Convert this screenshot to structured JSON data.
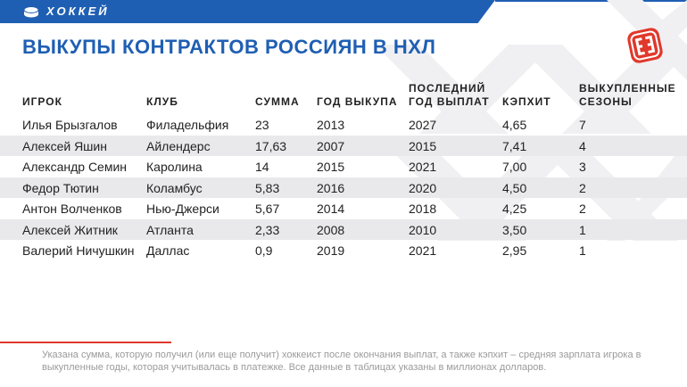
{
  "header": {
    "section_label": "ХОККЕЙ",
    "accent_color": "#1f5fb3",
    "logo_color": "#e0382b"
  },
  "title": "ВЫКУПЫ КОНТРАКТОВ РОССИЯН В НХЛ",
  "table": {
    "columns": [
      [
        "ИГРОК"
      ],
      [
        "КЛУБ"
      ],
      [
        "СУММА"
      ],
      [
        "ГОД ВЫКУПА"
      ],
      [
        "ПОСЛЕДНИЙ",
        "ГОД ВЫПЛАТ"
      ],
      [
        "КЭПХИТ"
      ],
      [
        "ВЫКУПЛЕННЫЕ",
        "СЕЗОНЫ"
      ]
    ],
    "rows": [
      [
        "Илья Брызгалов",
        "Филадельфия",
        "23",
        "2013",
        "2027",
        "4,65",
        "7"
      ],
      [
        "Алексей Яшин",
        "Айлендерс",
        "17,63",
        "2007",
        "2015",
        "7,41",
        "4"
      ],
      [
        "Александр Семин",
        "Каролина",
        "14",
        "2015",
        "2021",
        "7,00",
        "3"
      ],
      [
        "Федор Тютин",
        "Коламбус",
        "5,83",
        "2016",
        "2020",
        "4,50",
        "2"
      ],
      [
        "Антон Волченков",
        "Нью-Джерси",
        "5,67",
        "2014",
        "2018",
        "4,25",
        "2"
      ],
      [
        "Алексей Житник",
        "Атланта",
        "2,33",
        "2008",
        "2010",
        "3,50",
        "1"
      ],
      [
        "Валерий Ничушкин",
        "Даллас",
        "0,9",
        "2019",
        "2021",
        "2,95",
        "1"
      ]
    ]
  },
  "footnote": "Указана сумма, которую получил (или еще получит) хоккеист после окончания выплат, а также кэпхит – средняя зарплата игрока в выкупленные годы, которая учитывалась в платежке. Все данные в таблицах указаны в миллионах долларов."
}
